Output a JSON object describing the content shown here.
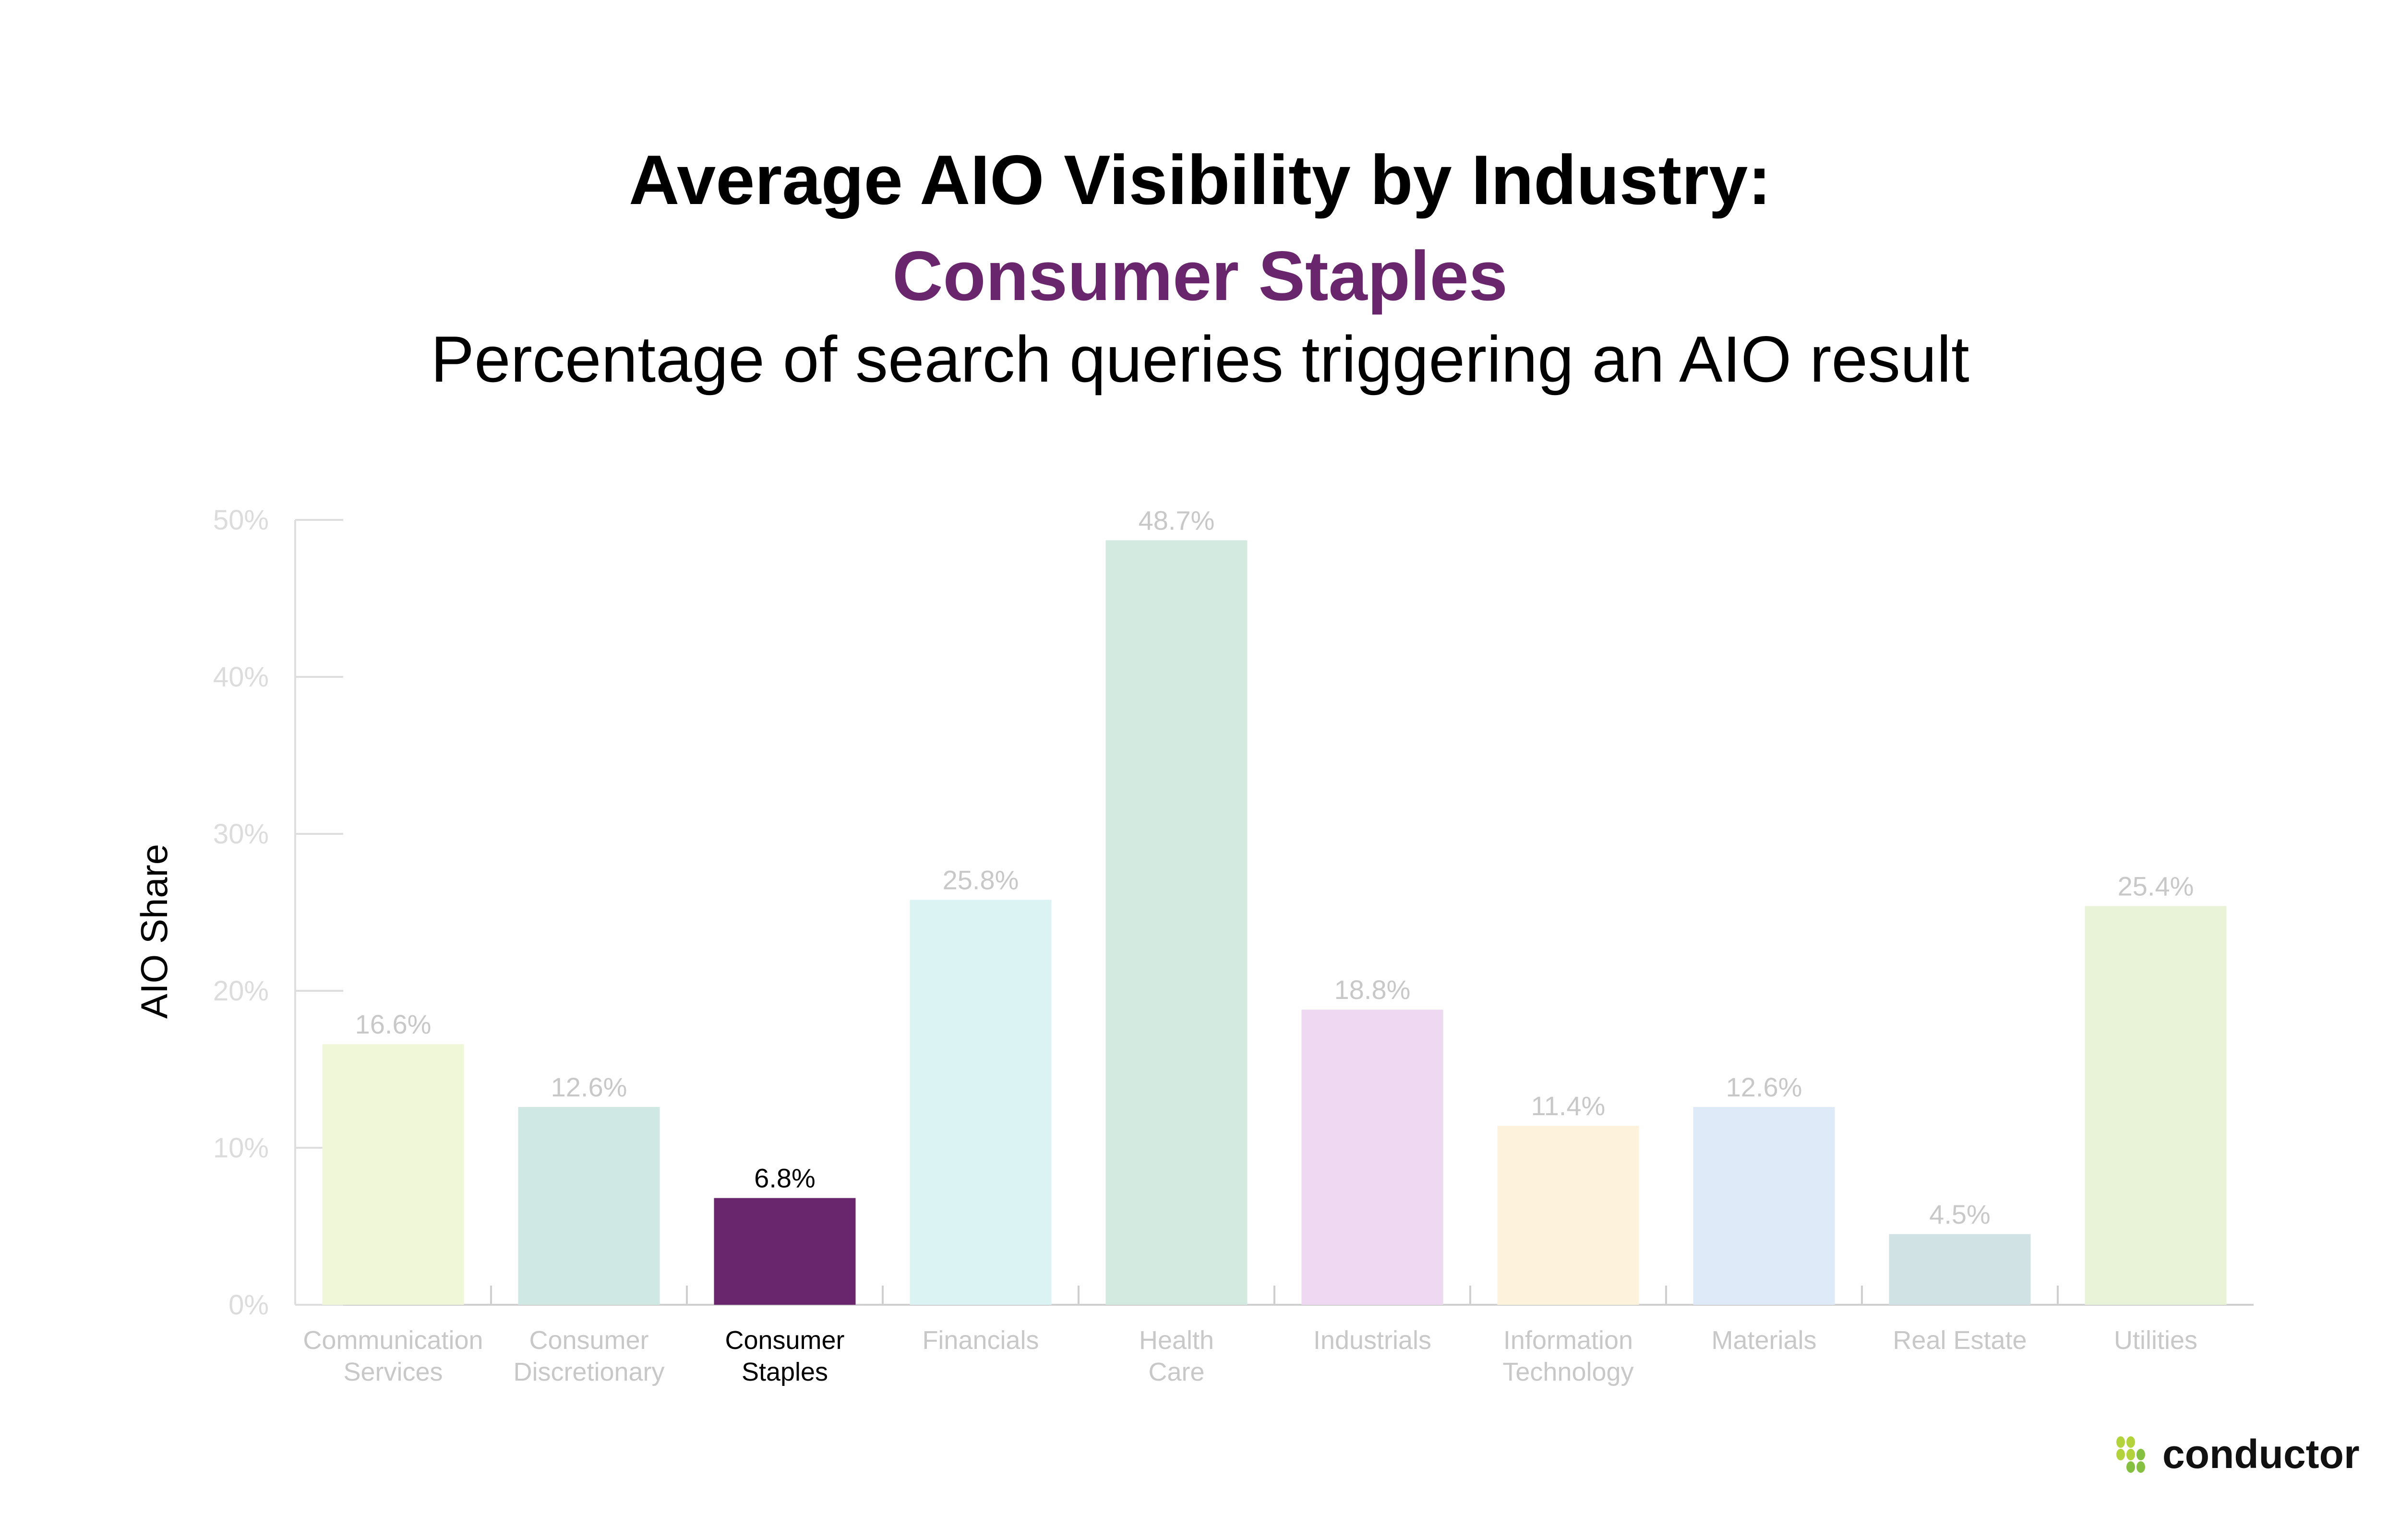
{
  "title": "Average AIO Visibility by Industry:",
  "highlight_title": "Consumer Staples",
  "subtitle": "Percentage of search queries triggering an AIO result",
  "logo_text": "conductor",
  "colors": {
    "highlight": "#6a266c",
    "logo_dots_light": "#b3d33d",
    "logo_dots_dark": "#86c040"
  },
  "chart_data": {
    "type": "bar",
    "title": "Average AIO Visibility by Industry: Consumer Staples",
    "subtitle": "Percentage of search queries triggering an AIO result",
    "ylabel": "AIO Share",
    "xlabel": "",
    "ylim": [
      0,
      50
    ],
    "yticks": [
      "0%",
      "10%",
      "20%",
      "30%",
      "40%",
      "50%"
    ],
    "grid": false,
    "highlighted_category": "Consumer Staples",
    "categories": [
      [
        "Communication",
        "Services"
      ],
      [
        "Consumer",
        "Discretionary"
      ],
      [
        "Consumer",
        "Staples"
      ],
      [
        "Financials"
      ],
      [
        "Health",
        "Care"
      ],
      [
        "Industrials"
      ],
      [
        "Information",
        "Technology"
      ],
      [
        "Materials"
      ],
      [
        "Real Estate"
      ],
      [
        "Utilities"
      ]
    ],
    "values": [
      16.6,
      12.6,
      6.8,
      25.8,
      48.7,
      18.8,
      11.4,
      12.6,
      4.5,
      25.4
    ],
    "value_labels": [
      "16.6%",
      "12.6%",
      "6.8%",
      "25.8%",
      "48.7%",
      "18.8%",
      "11.4%",
      "12.6%",
      "4.5%",
      "25.4%"
    ],
    "bar_colors": [
      "#f0f7d8",
      "#d0e8e4",
      "#6a266c",
      "#dcf3f4",
      "#d2eae0",
      "#eed8f2",
      "#fdf2dc",
      "#deeaf8",
      "#d0e2e4",
      "#e8f3d8"
    ]
  }
}
